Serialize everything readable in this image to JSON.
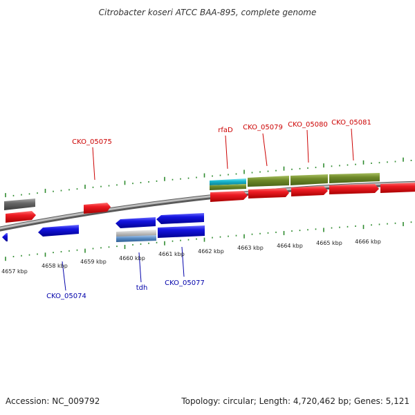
{
  "title": "Citrobacter koseri ATCC BAA-895, complete genome",
  "footer": {
    "accession": "Accession: NC_009792",
    "summary": "Topology: circular; Length: 4,720,462 bp; Genes: 5,121"
  },
  "colors": {
    "background": "#ffffff",
    "backbone": "#8a8a8a",
    "tick": "#2e8b2e",
    "forward_gene": "#e8141e",
    "reverse_gene": "#1414d8",
    "forward_label": "#cc0000",
    "reverse_label": "#0000aa",
    "rna_feature": "#6f8a2a",
    "cyan_feature": "#19b8d0",
    "pseudo_feature": "#666666",
    "gray_feature": "#b8b8b8",
    "steel_feature": "#5a8cc4"
  },
  "axis": {
    "tick_labels": [
      "4657 kbp",
      "4658 kbp",
      "4659 kbp",
      "4660 kbp",
      "4661 kbp",
      "4662 kbp",
      "4663 kbp",
      "4664 kbp",
      "4665 kbp",
      "4666 kbp"
    ]
  },
  "gene_labels": {
    "forward": [
      "CKO_05075",
      "rfaD",
      "CKO_05079",
      "CKO_05080",
      "CKO_05081"
    ],
    "reverse": [
      "CKO_05074",
      "tdh",
      "CKO_05077"
    ]
  }
}
